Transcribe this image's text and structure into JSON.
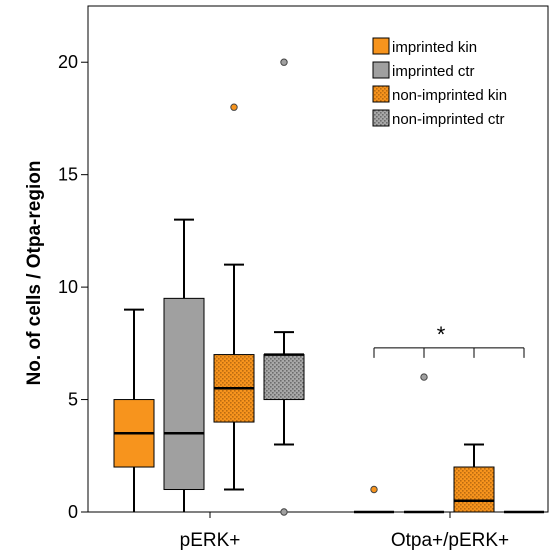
{
  "chart_data": {
    "type": "box",
    "title": "",
    "xlabel": "",
    "ylabel": "No. of cells / Otpa-region",
    "ylim": [
      0,
      22.5
    ],
    "yticks": [
      0,
      5,
      10,
      15,
      20
    ],
    "categories": [
      "pERK+",
      "Otpa+/pERK+"
    ],
    "legend_position": "top-right",
    "series": [
      {
        "name": "imprinted kin",
        "color": "#f7941d",
        "pattern": "solid",
        "boxes": [
          {
            "category": "pERK+",
            "whisker_low": 0,
            "q1": 2,
            "median": 3.5,
            "q3": 5,
            "whisker_high": 9,
            "outliers": []
          },
          {
            "category": "Otpa+/pERK+",
            "whisker_low": 0,
            "q1": 0,
            "median": 0,
            "q3": 0,
            "whisker_high": 0,
            "outliers": [
              1
            ]
          }
        ]
      },
      {
        "name": "imprinted ctr",
        "color": "#a0a0a0",
        "pattern": "solid",
        "boxes": [
          {
            "category": "pERK+",
            "whisker_low": 0,
            "q1": 1,
            "median": 3.5,
            "q3": 9.5,
            "whisker_high": 13,
            "outliers": []
          },
          {
            "category": "Otpa+/pERK+",
            "whisker_low": 0,
            "q1": 0,
            "median": 0,
            "q3": 0,
            "whisker_high": 0,
            "outliers": [
              6
            ]
          }
        ]
      },
      {
        "name": "non-imprinted kin",
        "color": "#f7941d",
        "pattern": "dotted",
        "boxes": [
          {
            "category": "pERK+",
            "whisker_low": 1,
            "q1": 4,
            "median": 5.5,
            "q3": 7,
            "whisker_high": 11,
            "outliers": [
              18
            ]
          },
          {
            "category": "Otpa+/pERK+",
            "whisker_low": 0,
            "q1": 0,
            "median": 0.5,
            "q3": 2,
            "whisker_high": 3,
            "outliers": []
          }
        ]
      },
      {
        "name": "non-imprinted ctr",
        "color": "#a0a0a0",
        "pattern": "dotted",
        "boxes": [
          {
            "category": "pERK+",
            "whisker_low": 3,
            "q1": 5,
            "median": 7,
            "q3": 7,
            "whisker_high": 8,
            "outliers": [
              20,
              0
            ]
          },
          {
            "category": "Otpa+/pERK+",
            "whisker_low": 0,
            "q1": 0,
            "median": 0,
            "q3": 0,
            "whisker_high": 0,
            "outliers": []
          }
        ]
      }
    ],
    "annotations": [
      {
        "text": "*",
        "category": "Otpa+/pERK+",
        "type": "significance-bracket",
        "level": 7.3
      }
    ]
  }
}
